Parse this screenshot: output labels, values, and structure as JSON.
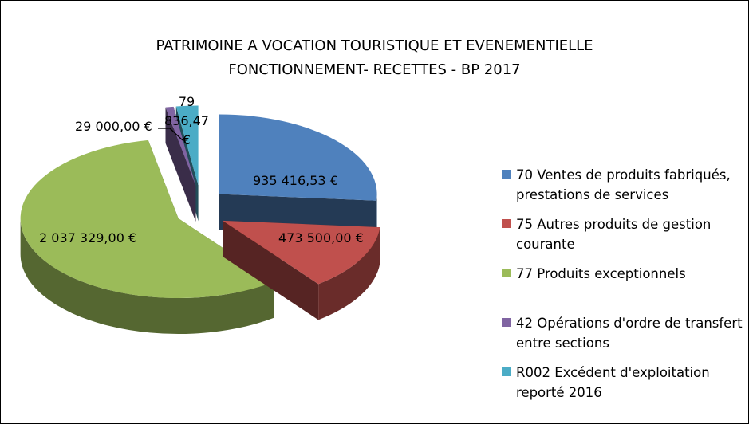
{
  "chart_data": {
    "type": "pie",
    "title": [
      "PATRIMOINE A VOCATION TOURISTIQUE ET EVENEMENTIELLE",
      "FONCTIONNEMENT- RECETTES - BP 2017"
    ],
    "categories": [
      "70 Ventes de produits fabriqués, prestations de services",
      "75 Autres produits de gestion courante",
      "77 Produits exceptionnels",
      "42 Opérations d'ordre de transfert entre sections",
      "R002 Excédent d'exploitation reporté 2016"
    ],
    "values": [
      935416.53,
      473500.0,
      2037329.0,
      29000.0,
      79836.47
    ],
    "value_labels": [
      "935 416,53 €",
      "473 500,00 €",
      "2 037 329,00 €",
      "29 000,00 €",
      "79 836,47 €"
    ],
    "colors": [
      "#4f81bd",
      "#c0504d",
      "#9bbb59",
      "#8064a2",
      "#4bacc6"
    ],
    "legend": "right"
  }
}
